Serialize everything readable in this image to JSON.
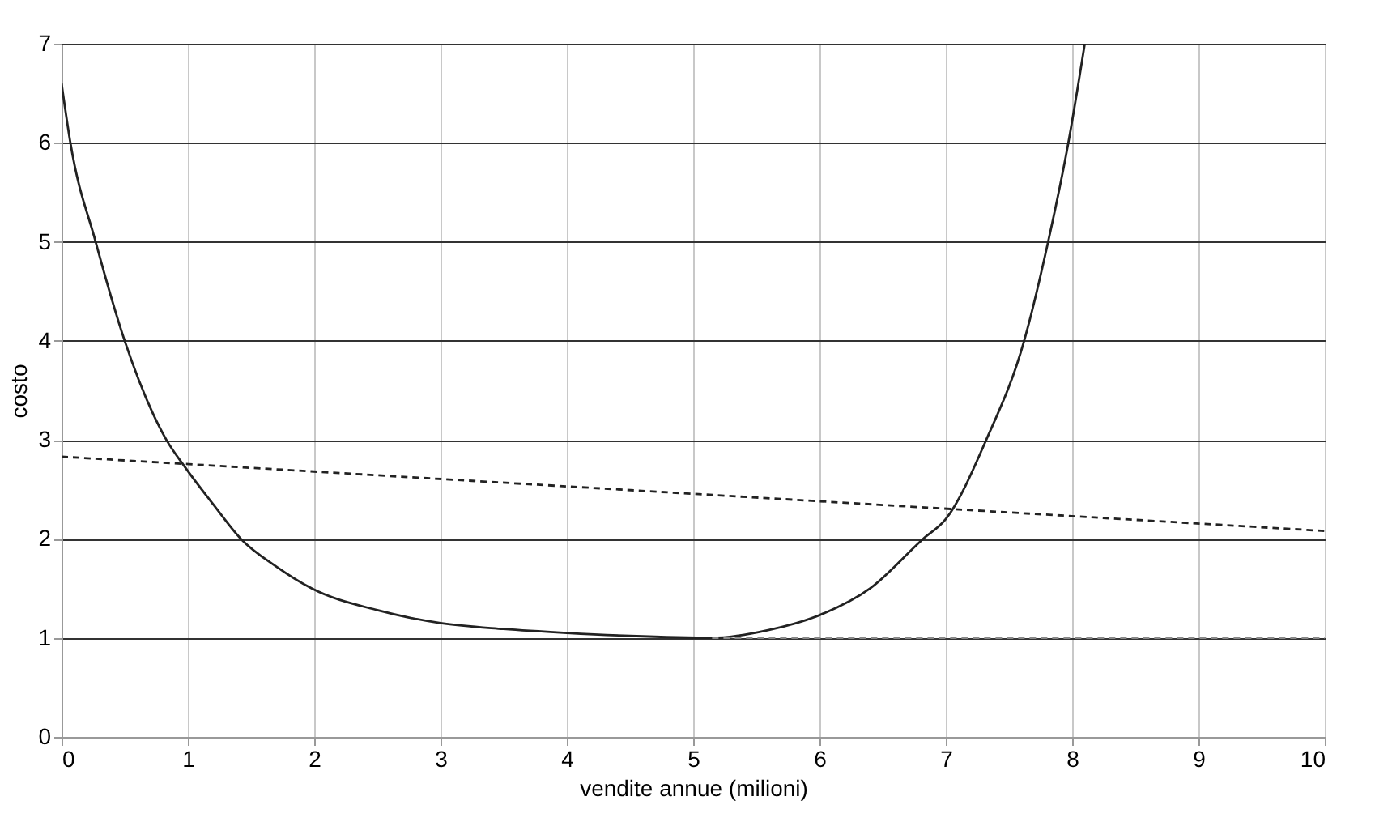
{
  "chart_data": {
    "type": "line",
    "xlabel": "vendite annue (milioni)",
    "ylabel": "costo",
    "xlim": [
      0,
      10
    ],
    "ylim": [
      0,
      7
    ],
    "xticks": [
      0,
      1,
      2,
      3,
      4,
      5,
      6,
      7,
      8,
      9,
      10
    ],
    "yticks": [
      0,
      1,
      2,
      3,
      4,
      5,
      6,
      7
    ],
    "grid": true,
    "marker": "none",
    "series": [
      {
        "color": "#222222",
        "line_style": "solid",
        "x": [
          0,
          0.07,
          0.27,
          0.5,
          0.83,
          0.98,
          1.2,
          1.42,
          1.7,
          1.98,
          2.5,
          3,
          3.5,
          4,
          4.5,
          5.15,
          5.6,
          6,
          6.4,
          6.82,
          7,
          7.32,
          7.62,
          7.81,
          7.97,
          8.1
        ],
        "values": [
          6.6,
          6,
          5,
          4,
          3,
          2.72,
          2.35,
          2,
          1.72,
          1.5,
          1.28,
          1.15,
          1.09,
          1.05,
          1.02,
          1.0,
          1.08,
          1.23,
          1.5,
          2,
          2.2,
          3,
          4,
          5,
          6,
          7
        ]
      },
      {
        "color": "#222222",
        "line_style": "dashed",
        "x": [
          0,
          10
        ],
        "values": [
          2.83,
          2.08
        ]
      },
      {
        "color": "#888888",
        "line_style": "dashed",
        "x": [
          5.15,
          10
        ],
        "values": [
          1.0,
          1.0
        ]
      }
    ]
  }
}
